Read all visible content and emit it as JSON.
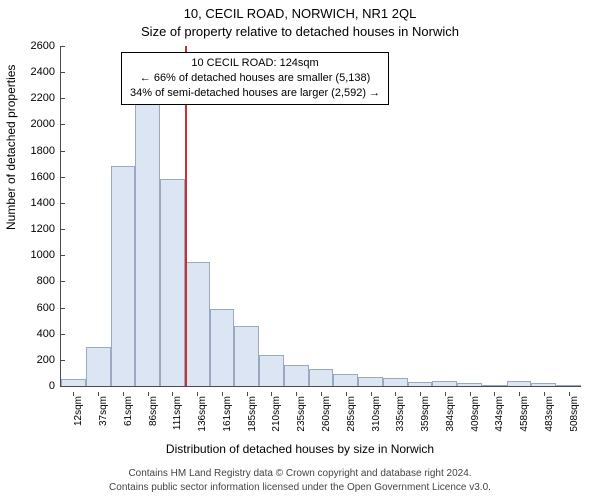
{
  "title_line1": "10, CECIL ROAD, NORWICH, NR1 2QL",
  "title_line2": "Size of property relative to detached houses in Norwich",
  "y_axis_label": "Number of detached properties",
  "x_axis_label": "Distribution of detached houses by size in Norwich",
  "footer_line1": "Contains HM Land Registry data © Crown copyright and database right 2024.",
  "footer_line2": "Contains public sector information licensed under the Open Government Licence v3.0.",
  "chart": {
    "type": "histogram",
    "ylim": [
      0,
      2600
    ],
    "ytick_step": 200,
    "bar_fill": "#dbe5f4",
    "bar_stroke": "#9aa8c0",
    "background_color": "#ffffff",
    "axis_color": "#4a4a4a",
    "marker_line_color": "#c93030",
    "marker_value_sqm": 124,
    "categories": [
      "12sqm",
      "37sqm",
      "61sqm",
      "86sqm",
      "111sqm",
      "136sqm",
      "161sqm",
      "185sqm",
      "210sqm",
      "235sqm",
      "260sqm",
      "285sqm",
      "310sqm",
      "335sqm",
      "359sqm",
      "384sqm",
      "409sqm",
      "434sqm",
      "458sqm",
      "483sqm",
      "508sqm"
    ],
    "values": [
      50,
      300,
      1680,
      2200,
      1580,
      950,
      590,
      460,
      240,
      160,
      130,
      90,
      70,
      60,
      30,
      40,
      20,
      10,
      40,
      20,
      0
    ],
    "annotation": {
      "line1": "10 CECIL ROAD: 124sqm",
      "line2": "← 66% of detached houses are smaller (5,138)",
      "line3": "34% of semi-detached houses are larger (2,592) →",
      "border_color": "#000000",
      "background_color": "#ffffff",
      "fontsize": 11
    }
  }
}
